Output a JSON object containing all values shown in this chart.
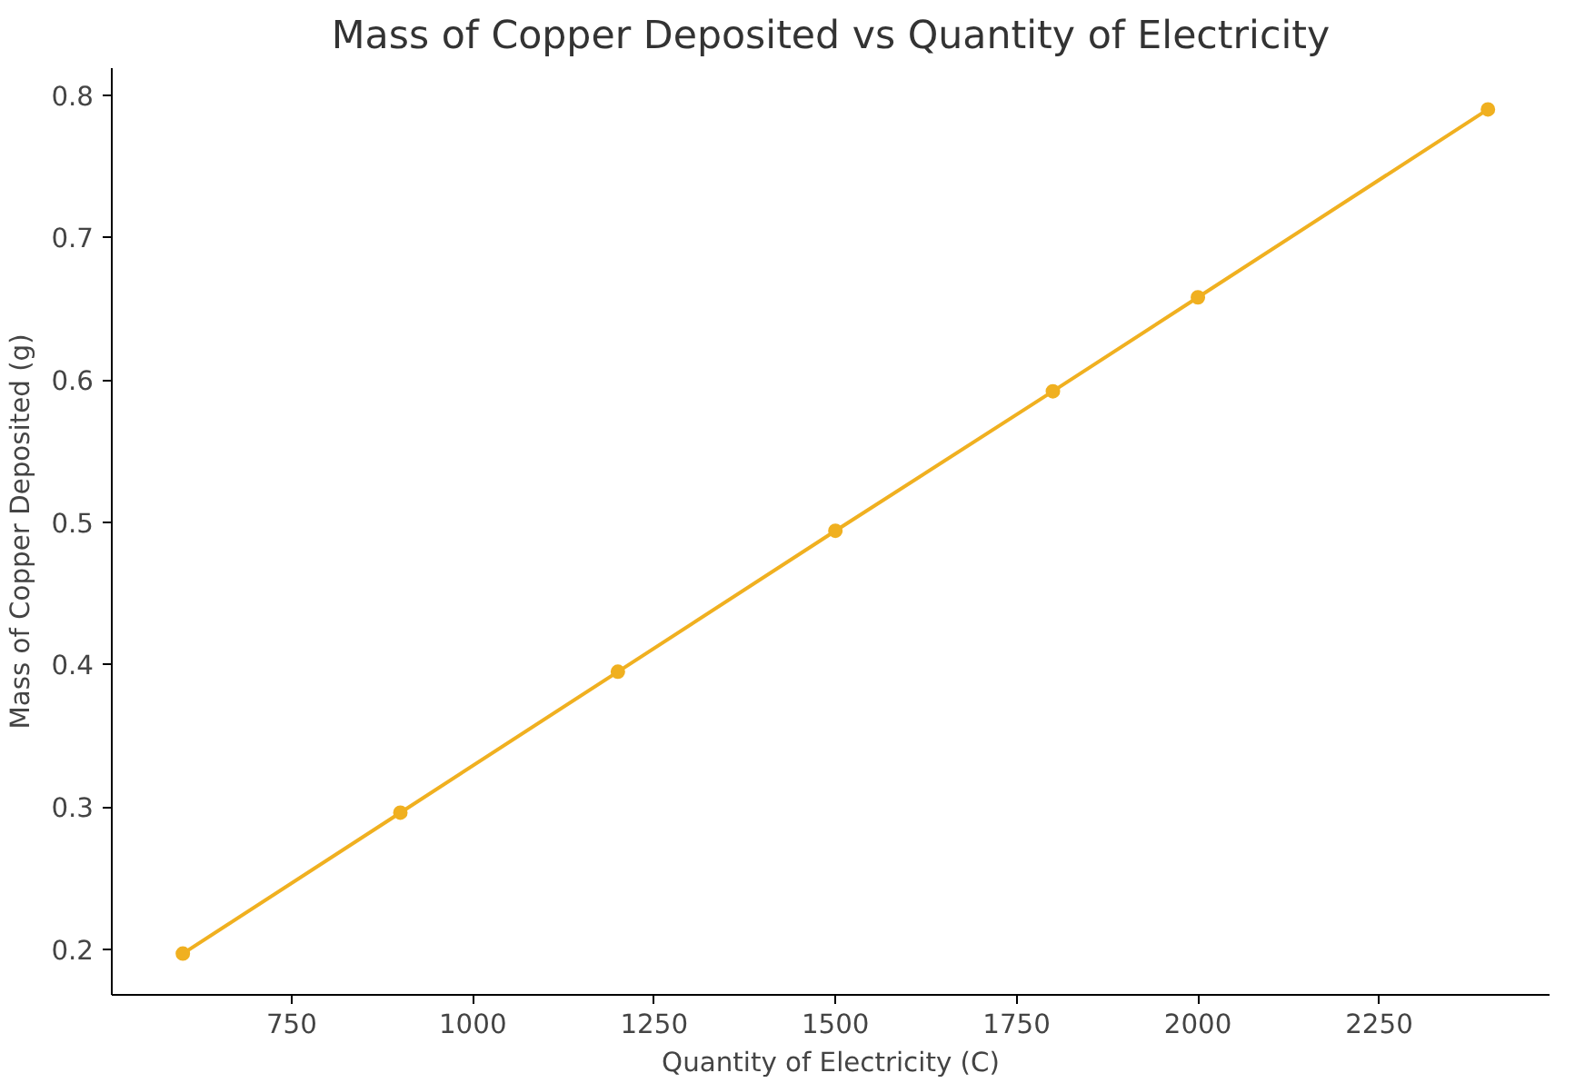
{
  "chart_data": {
    "type": "line",
    "title": "Mass of Copper Deposited vs Quantity of Electricity",
    "xlabel": "Quantity of Electricity (C)",
    "ylabel": "Mass of Copper Deposited (g)",
    "x": [
      600,
      900,
      1200,
      1500,
      1800,
      2000,
      2400
    ],
    "series": [
      {
        "color": "#f0b020",
        "values": [
          0.197,
          0.296,
          0.395,
          0.494,
          0.592,
          0.658,
          0.79
        ]
      }
    ],
    "xlim": [
      502,
      2485
    ],
    "ylim": [
      0.168,
      0.819
    ],
    "xticks": [
      750,
      1000,
      1250,
      1500,
      1750,
      2000,
      2250
    ],
    "yticks": [
      0.2,
      0.3,
      0.4,
      0.5,
      0.6,
      0.7,
      0.8
    ],
    "marker": "circle",
    "line_style": "solid",
    "grid": false
  }
}
